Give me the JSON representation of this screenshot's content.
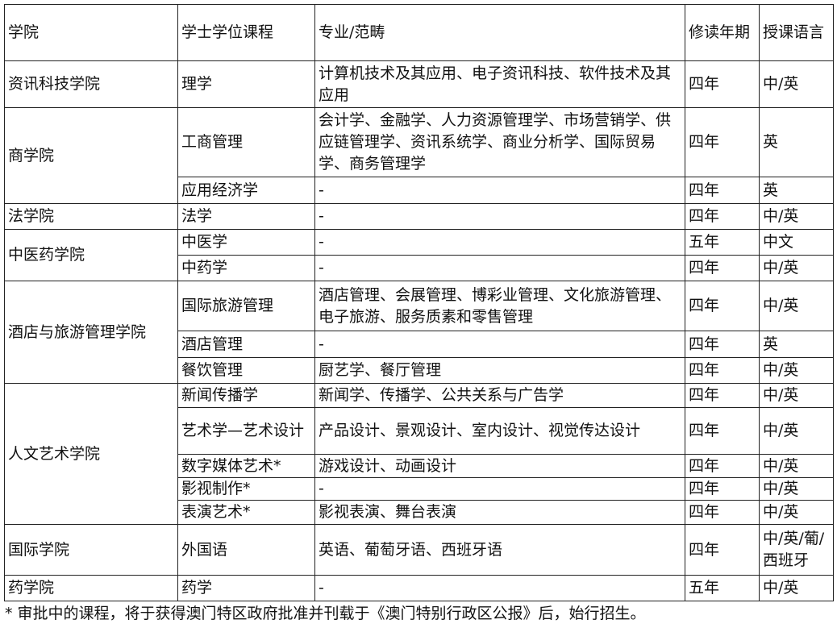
{
  "header": {
    "college": "学院",
    "program": "学士学位课程",
    "majors": "专业/范畴",
    "years": "修读年期",
    "language": "授课语言"
  },
  "colleges": [
    {
      "name": "资讯科技学院",
      "programs": [
        {
          "program": "理学",
          "majors": "计算机技术及其应用、电子资讯科技、软件技术及其应用",
          "years": "四年",
          "language": "中/英"
        }
      ]
    },
    {
      "name": "商学院",
      "programs": [
        {
          "program": "工商管理",
          "majors": "会计学、金融学、人力资源管理学、市场营销学、供应链管理学、资讯系统学、商业分析学、国际贸易学、商务管理学",
          "years": "四年",
          "language": "英"
        },
        {
          "program": "应用经济学",
          "majors": "-",
          "years": "四年",
          "language": "英"
        }
      ]
    },
    {
      "name": "法学院",
      "programs": [
        {
          "program": "法学",
          "majors": "-",
          "years": "四年",
          "language": "中/英"
        }
      ]
    },
    {
      "name": "中医药学院",
      "programs": [
        {
          "program": "中医学",
          "majors": "-",
          "years": "五年",
          "language": "中文"
        },
        {
          "program": "中药学",
          "majors": "-",
          "years": "四年",
          "language": "中/英"
        }
      ]
    },
    {
      "name": "酒店与旅游管理学院",
      "programs": [
        {
          "program": "国际旅游管理",
          "majors": "酒店管理、会展管理、博彩业管理、文化旅游管理、电子旅游、服务质素和零售管理",
          "years": "四年",
          "language": "中/英"
        },
        {
          "program": "酒店管理",
          "majors": "-",
          "years": "四年",
          "language": "英"
        },
        {
          "program": "餐饮管理",
          "majors": "厨艺学、餐厅管理",
          "years": "四年",
          "language": "中/英"
        }
      ]
    },
    {
      "name": "人文艺术学院",
      "programs": [
        {
          "program": "新闻传播学",
          "majors": "新闻学、传播学、公共关系与广告学",
          "years": "四年",
          "language": "中/英"
        },
        {
          "program": "艺术学—艺术设计",
          "majors": "产品设计、景观设计、室内设计、视觉传达设计",
          "years": "四年",
          "language": "中/英"
        },
        {
          "program": "数字媒体艺术*",
          "majors": "游戏设计、动画设计",
          "years": "四年",
          "language": "中/英"
        },
        {
          "program": "影视制作*",
          "majors": "-",
          "years": "四年",
          "language": "中/英"
        },
        {
          "program": "表演艺术*",
          "majors": "影视表演、舞台表演",
          "years": "四年",
          "language": "中/英"
        }
      ]
    },
    {
      "name": "国际学院",
      "programs": [
        {
          "program": "外国语",
          "majors": "英语、葡萄牙语、西班牙语",
          "years": "四年",
          "language": "中/英/葡/西班牙"
        }
      ]
    },
    {
      "name": "药学院",
      "programs": [
        {
          "program": "药学",
          "majors": " -",
          "years": "五年",
          "language": "中/英"
        }
      ]
    }
  ],
  "footnote": "* 审批中的课程，将于获得澳门特区政府批准并刊载于《澳门特别行政区公报》后，始行招生。"
}
